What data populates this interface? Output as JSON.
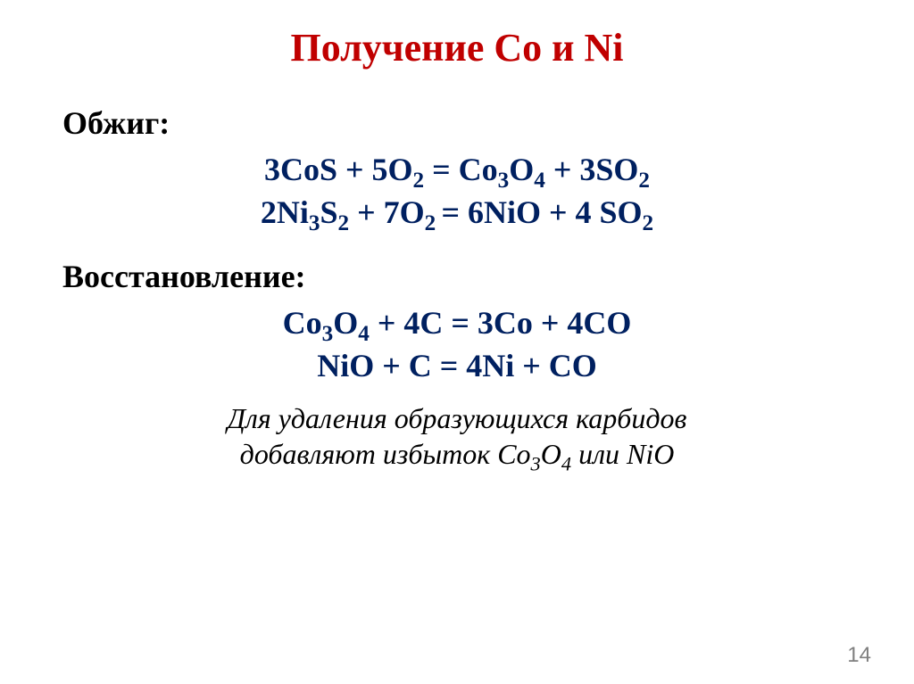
{
  "title": "Получение Co и Ni",
  "section1_label": "Обжиг:",
  "eq1_html": "3CoS + 5O<sub>2</sub> = Co<sub>3</sub>O<sub>4</sub> + 3SO<sub>2</sub>",
  "eq2_html": "2Ni<sub>3</sub>S<sub>2</sub> + 7O<sub>2 </sub>= 6NiO + 4 SO<sub>2</sub>",
  "section2_label": "Восстановление:",
  "eq3_html": "Co<sub>3</sub>O<sub>4</sub> + 4C = 3Co + 4CO",
  "eq4_html": "NiO + C = 4Ni + CO",
  "footnote_html": "Для удаления образующихся карбидов<br>добавляют избыток Co<sub>3</sub>O<sub>4</sub> или NiO",
  "page_number": "14",
  "colors": {
    "title": "#c00000",
    "equation": "#002060",
    "body_text": "#000000",
    "page_number": "#808080",
    "background": "#ffffff"
  },
  "fonts": {
    "family": "Times New Roman",
    "title_size_pt": 33,
    "body_size_pt": 27,
    "footnote_size_pt": 24
  }
}
